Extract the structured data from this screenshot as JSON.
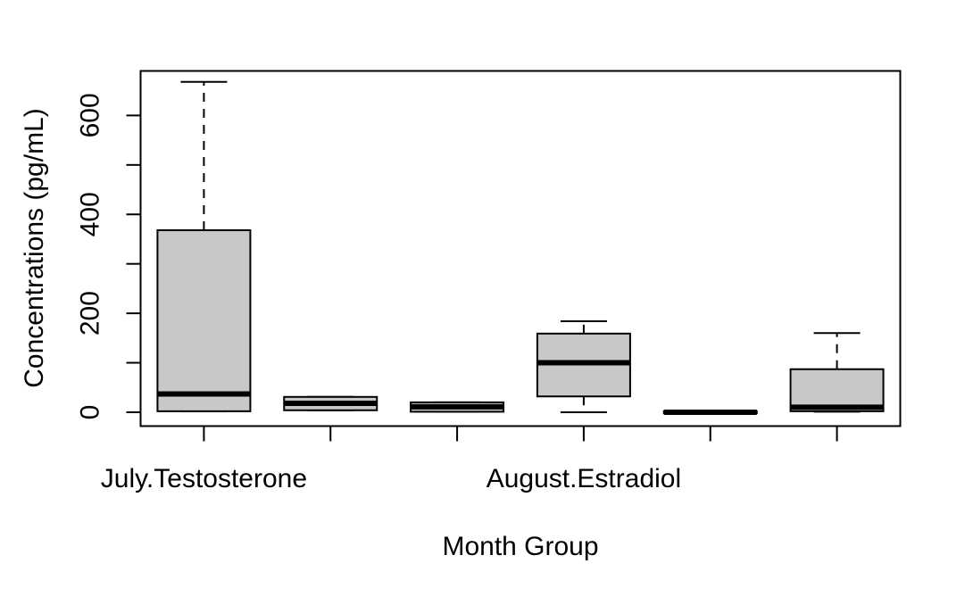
{
  "chart_data": {
    "type": "box",
    "xlabel": "Month Group",
    "ylabel": "Concentrations (pg/mL)",
    "ylim": [
      -28,
      690
    ],
    "yticks": [
      0,
      100,
      200,
      300,
      400,
      500,
      600
    ],
    "ytick_labels": [
      "0",
      "200",
      "400",
      "600"
    ],
    "categories": [
      "July.Testosterone",
      "",
      "",
      "August.Estradiol",
      "",
      ""
    ],
    "box_color": "#c8c8c8",
    "boxes": [
      {
        "whisker_low": 2,
        "q1": 2,
        "median": 37,
        "q3": 368,
        "whisker_high": 668
      },
      {
        "whisker_low": 4,
        "q1": 4,
        "median": 18,
        "q3": 31,
        "whisker_high": 31
      },
      {
        "whisker_low": 1,
        "q1": 1,
        "median": 11,
        "q3": 20,
        "whisker_high": 20
      },
      {
        "whisker_low": 0,
        "q1": 32,
        "median": 100,
        "q3": 159,
        "whisker_high": 184
      },
      {
        "whisker_low": -2,
        "q1": -2,
        "median": 0,
        "q3": 2,
        "whisker_high": 2
      },
      {
        "whisker_low": 1,
        "q1": 2,
        "median": 10,
        "q3": 87,
        "whisker_high": 160
      }
    ]
  }
}
